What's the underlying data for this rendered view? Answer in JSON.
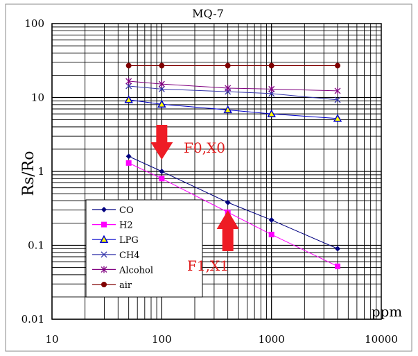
{
  "chart_data": {
    "type": "line",
    "title": "MQ-7",
    "xlabel": "ppm",
    "ylabel": "Rs/Ro",
    "xscale": "log",
    "yscale": "log",
    "xlim": [
      10,
      10000
    ],
    "ylim": [
      0.01,
      100
    ],
    "xticks": [
      "10",
      "100",
      "1000",
      "10000"
    ],
    "yticks": [
      "100",
      "10",
      "1",
      "0.1",
      "0.01"
    ],
    "grid": true,
    "legend_position": "bottom-left",
    "x": [
      50,
      100,
      400,
      1000,
      4000
    ],
    "series": [
      {
        "name": "CO",
        "color": "#000080",
        "marker": "diamond",
        "values": [
          1.6,
          1.0,
          0.38,
          0.22,
          0.09
        ]
      },
      {
        "name": "H2",
        "color": "#FF00FF",
        "marker": "square",
        "values": [
          1.3,
          0.8,
          0.28,
          0.14,
          0.052
        ]
      },
      {
        "name": "LPG",
        "color": "#0000CC",
        "marker": "triangle",
        "values": [
          9.3,
          8.1,
          6.8,
          6.0,
          5.2
        ]
      },
      {
        "name": "CH4",
        "color": "#3333AA",
        "marker": "x",
        "values": [
          14.3,
          13,
          12,
          11.3,
          9.3
        ]
      },
      {
        "name": "Alcohol",
        "color": "#800080",
        "marker": "star",
        "values": [
          16.6,
          15.2,
          13.4,
          13,
          12.3
        ]
      },
      {
        "name": "air",
        "color": "#800000",
        "marker": "circle",
        "values": [
          27,
          27,
          27,
          27,
          27
        ]
      }
    ],
    "annotations": [
      {
        "text": "F0,X0",
        "arrow": "down",
        "at_x": 100
      },
      {
        "text": "F1,X1",
        "arrow": "up",
        "at_x": 400
      }
    ]
  }
}
